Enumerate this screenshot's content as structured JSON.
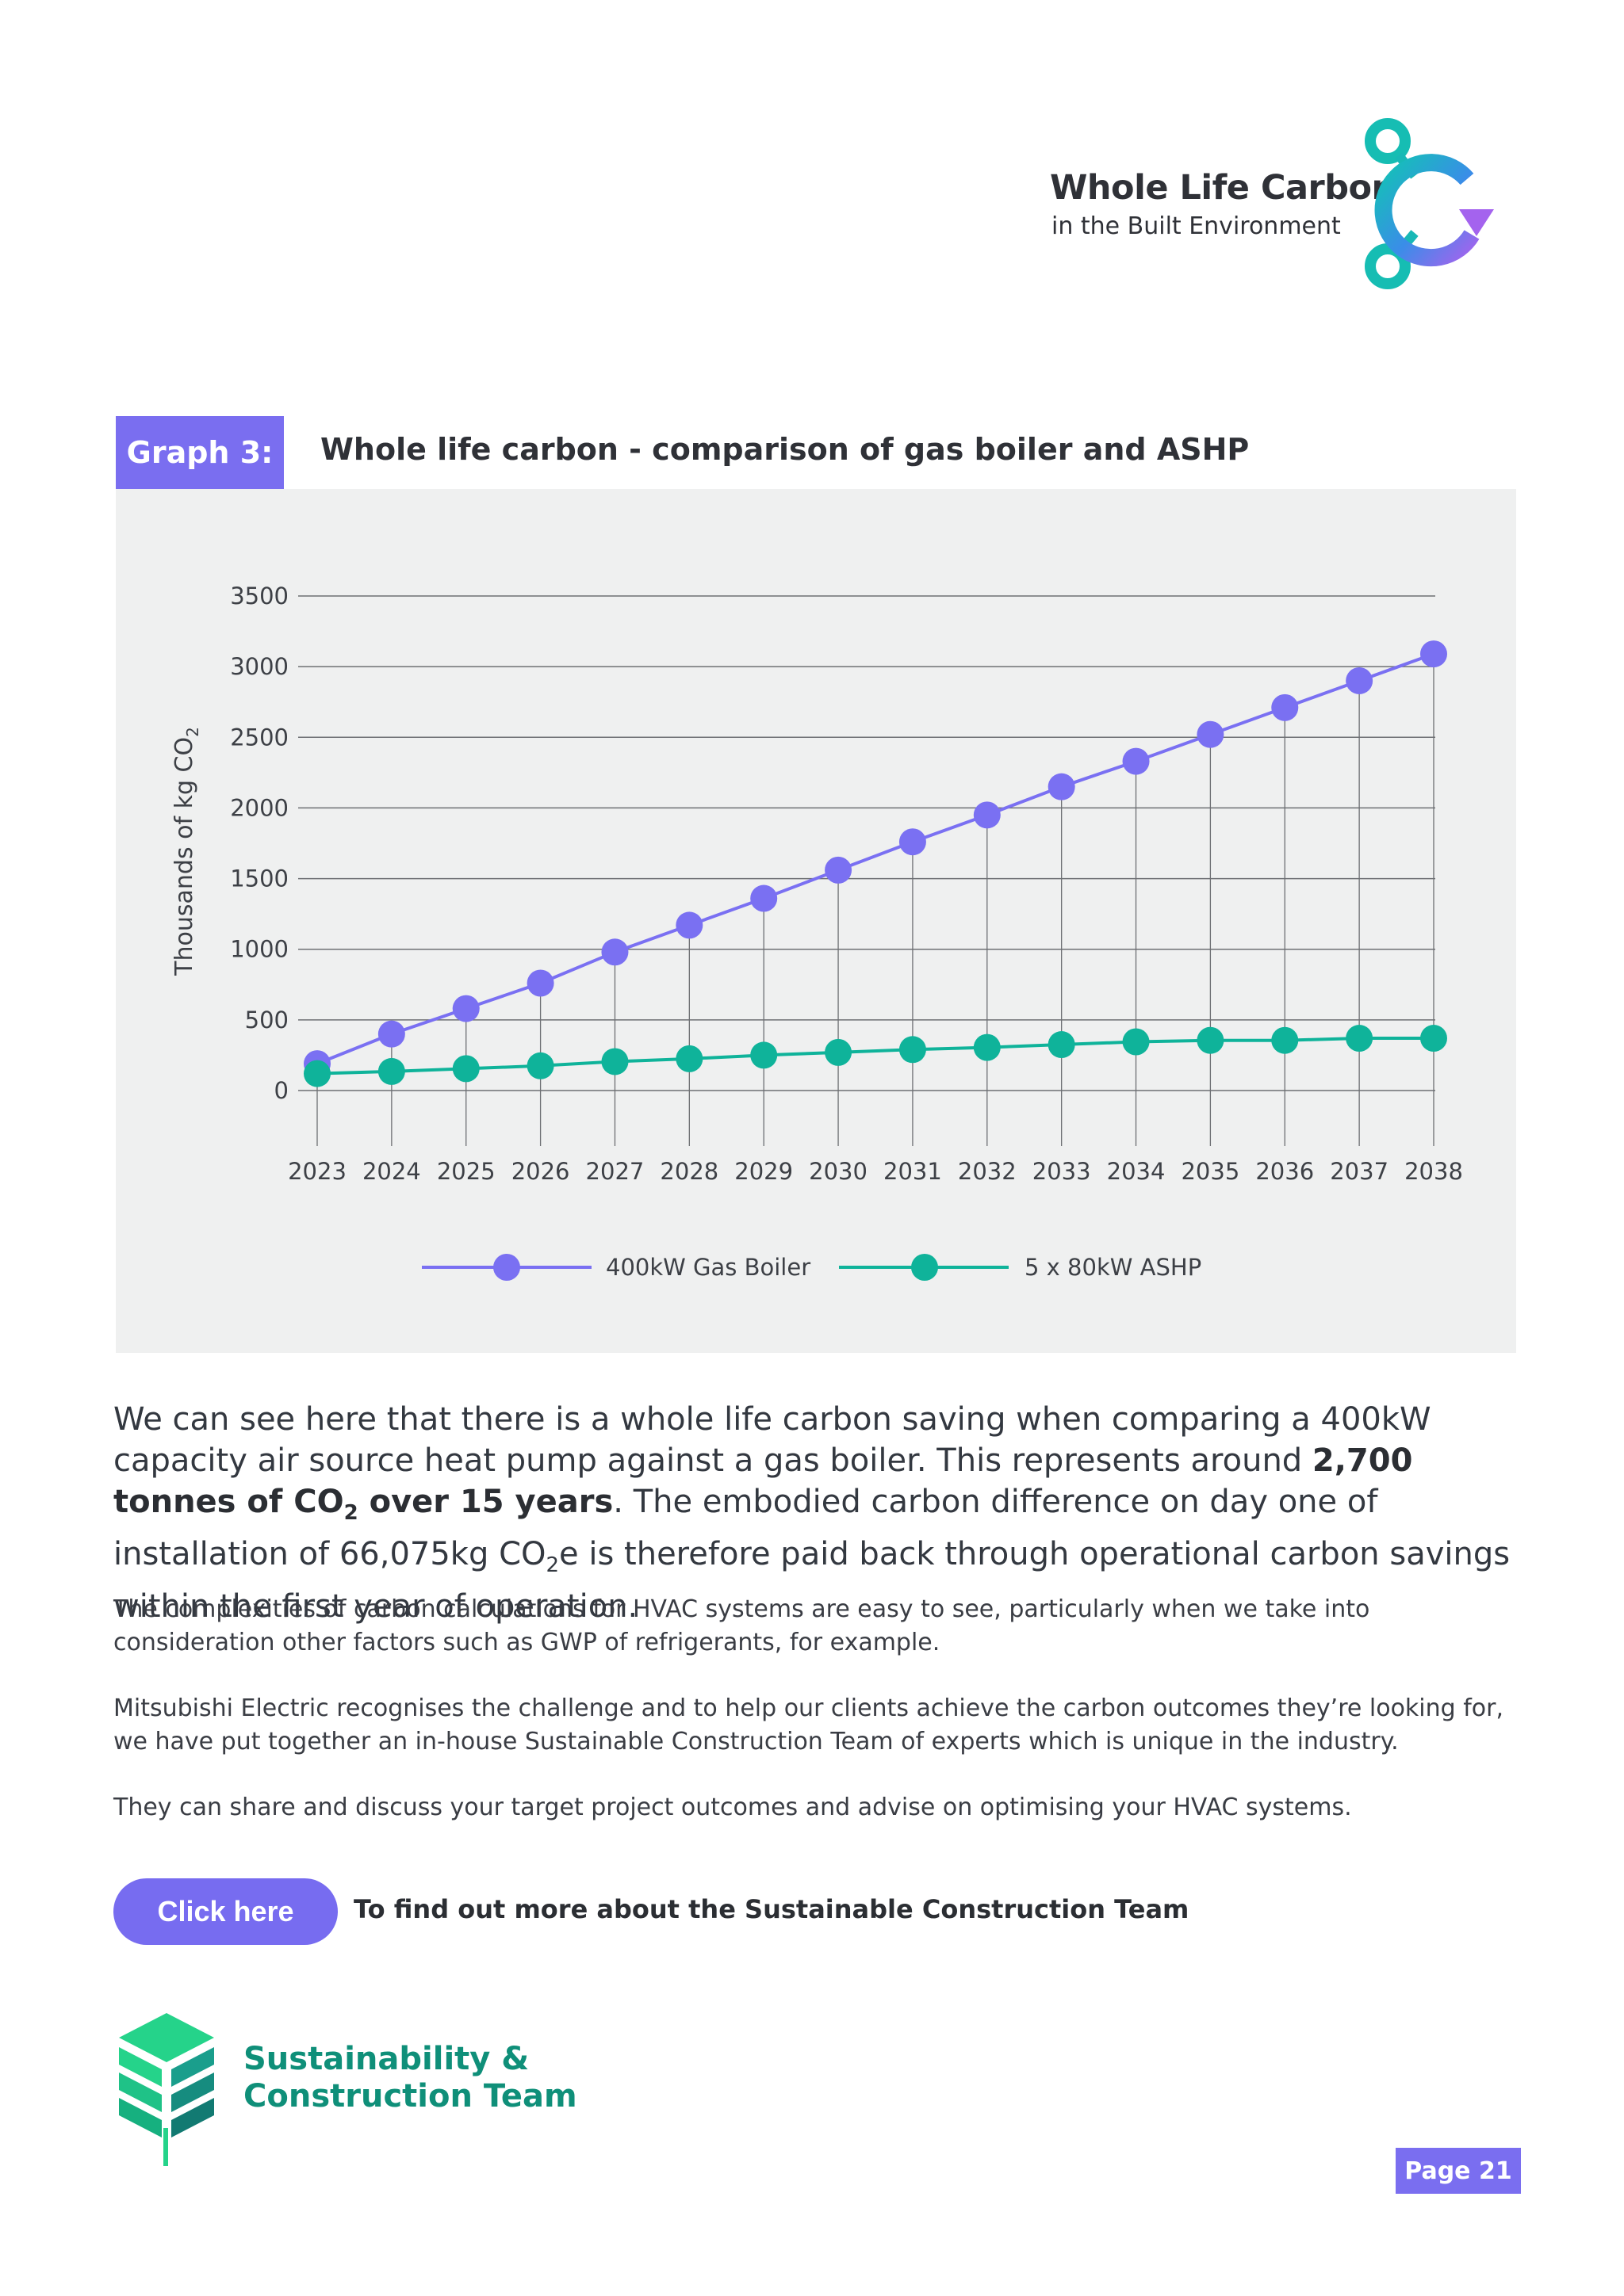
{
  "header": {
    "logo_title": "Whole Life Carbon",
    "logo_subtitle": "in the Built Environment"
  },
  "graph": {
    "tag": "Graph 3:",
    "title": "Whole life carbon - comparison of gas boiler and ASHP"
  },
  "chart_data": {
    "type": "line",
    "x": [
      2023,
      2024,
      2025,
      2026,
      2027,
      2028,
      2029,
      2030,
      2031,
      2032,
      2033,
      2034,
      2035,
      2036,
      2037,
      2038
    ],
    "series": [
      {
        "name": "400kW Gas Boiler",
        "color": "#7a70f2",
        "values": [
          190,
          400,
          580,
          760,
          980,
          1170,
          1360,
          1560,
          1760,
          1950,
          2150,
          2330,
          2520,
          2710,
          2900,
          3090
        ]
      },
      {
        "name": "5 x 80kW ASHP",
        "color": "#0fb39a",
        "values": [
          120,
          135,
          155,
          175,
          205,
          225,
          250,
          270,
          290,
          305,
          325,
          345,
          355,
          355,
          370,
          370
        ]
      }
    ],
    "xlabel": "",
    "ylabel": "Thousands of kg CO",
    "ylabel_sub": "2",
    "ylim": [
      0,
      3500
    ],
    "yticks": [
      0,
      500,
      1000,
      1500,
      2000,
      2500,
      3000,
      3500
    ],
    "grid": true,
    "legend_position": "bottom-center"
  },
  "body": {
    "lead_1": "We can see here that there is a whole life carbon saving when comparing a 400kW capacity air source heat pump against a gas boiler. This represents around ",
    "lead_bold": "2,700 tonnes of CO",
    "lead_bold_sub": "2",
    "lead_bold_2": " over 15 years",
    "lead_2": ". The embodied carbon difference on day one of installation of 66,075kg CO",
    "lead_sub": "2",
    "lead_3": "e is therefore paid back through operational carbon savings within the first year of operation.",
    "p1": "The complexities of carbon calculations for HVAC systems are easy to see, particularly when we take into consideration other factors such as GWP of refrigerants, for example.",
    "p2": "Mitsubishi Electric recognises the challenge and to help our clients achieve the carbon outcomes they’re looking for, we have put together an in-house Sustainable Construction Team of experts which is unique in the industry.",
    "p3": "They can share and discuss your target project outcomes and advise on optimising your HVAC systems."
  },
  "cta": {
    "button_label": "Click here",
    "text": "To find out more about the Sustainable Construction Team"
  },
  "team": {
    "name": "Sustainability &\nConstruction Team"
  },
  "footer": {
    "page_label": "Page 21"
  },
  "colors": {
    "accent_purple": "#7a6ef0",
    "accent_teal": "#0fb39a",
    "team_green": "#0f8f79"
  }
}
